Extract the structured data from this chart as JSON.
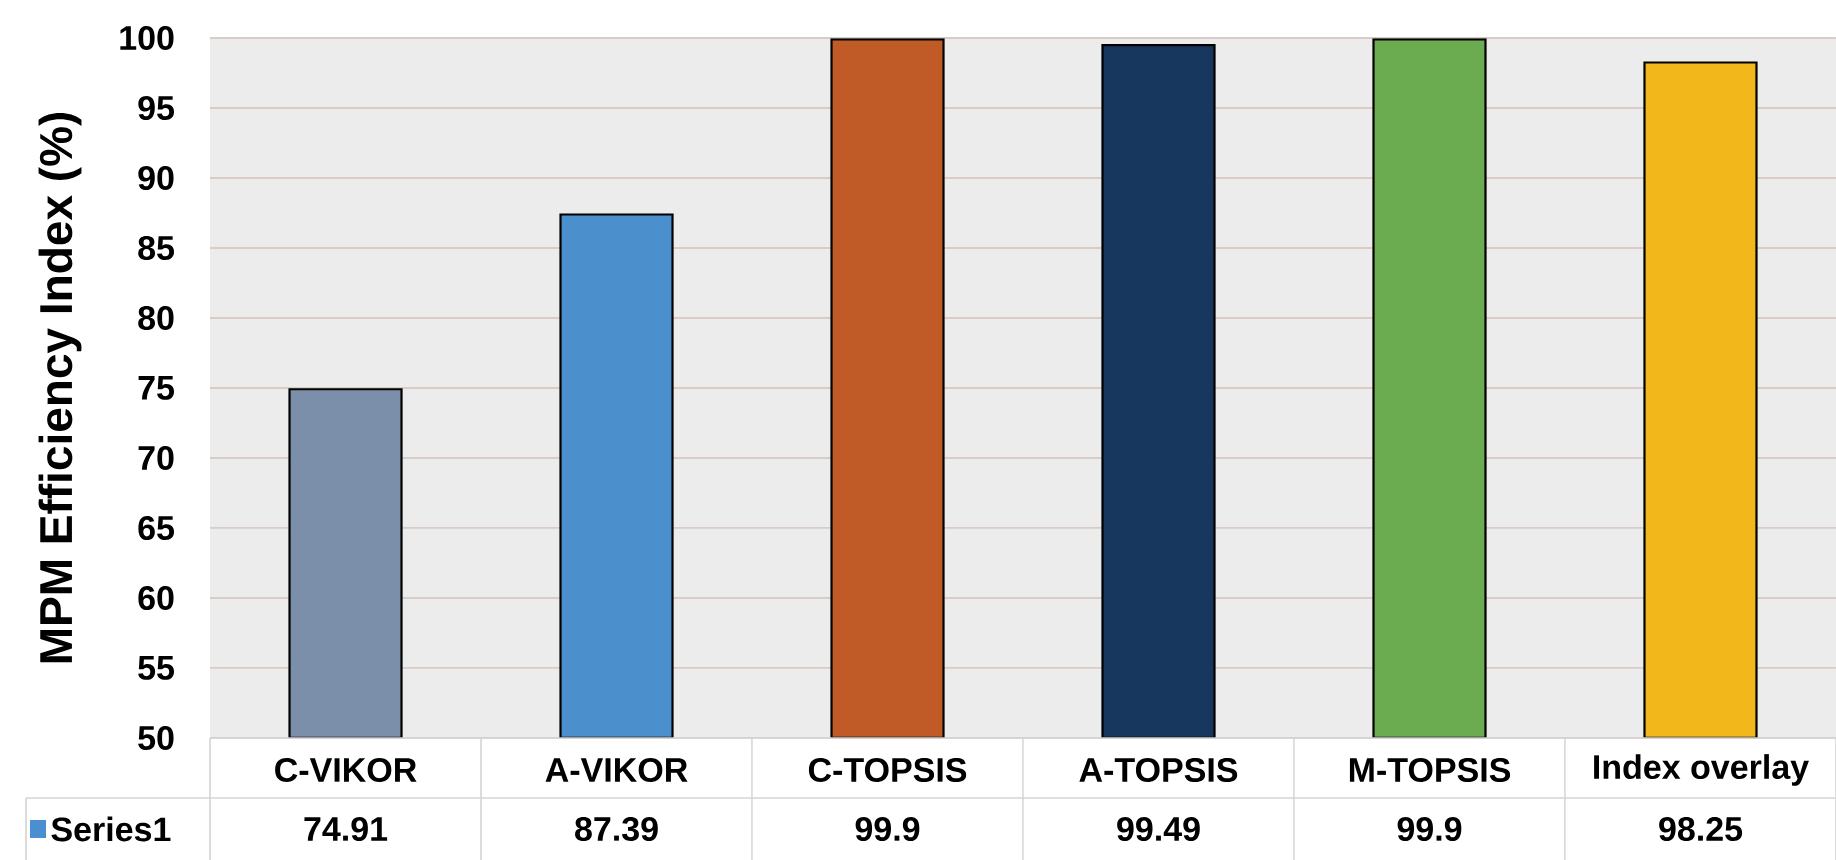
{
  "chart_data": {
    "type": "bar",
    "ylabel": "MPM Efficiency Index (%)",
    "categories": [
      "C-VIKOR",
      "A-VIKOR",
      "C-TOPSIS",
      "A-TOPSIS",
      "M-TOPSIS",
      "Index overlay"
    ],
    "series": [
      {
        "name": "Series1",
        "color": "#4a8fd0",
        "colors": [
          "#7b8fab",
          "#4b8fcc",
          "#c05b28",
          "#18375f",
          "#6aac4f",
          "#f2b81b"
        ],
        "values": [
          74.91,
          87.39,
          99.9,
          99.49,
          99.9,
          98.25
        ]
      }
    ],
    "ylim": [
      50,
      100
    ],
    "yticks": [
      50,
      55,
      60,
      65,
      70,
      75,
      80,
      85,
      90,
      95,
      100
    ],
    "grid": "y",
    "legend": "bottom left",
    "data_labels": true
  }
}
